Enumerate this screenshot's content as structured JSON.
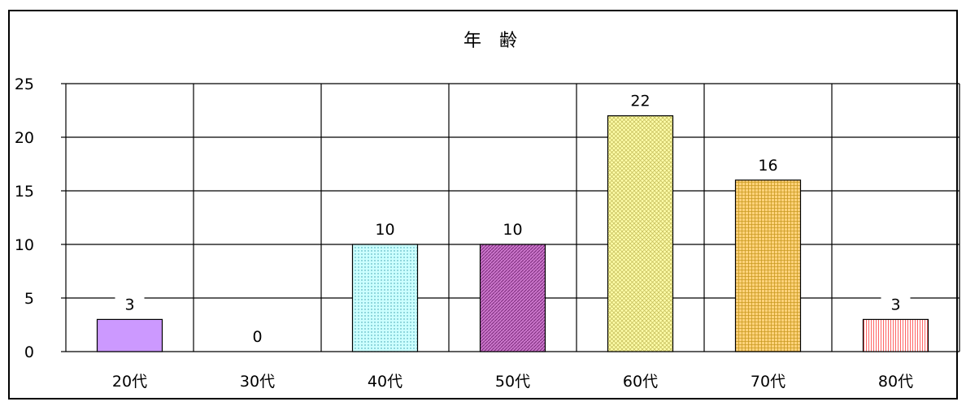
{
  "chart_data": {
    "type": "bar",
    "title": "年　齢",
    "categories": [
      "20代",
      "30代",
      "40代",
      "50代",
      "60代",
      "70代",
      "80代"
    ],
    "values": [
      3,
      0,
      10,
      10,
      22,
      16,
      3
    ],
    "ylim": [
      0,
      25
    ],
    "yticks": [
      0,
      5,
      10,
      15,
      20,
      25
    ],
    "grid": true,
    "legend": "none",
    "colors": [
      "#cc99ff",
      "#ffffff",
      "#ccffff",
      "#cc66cc",
      "#ffff99",
      "#ffcc66",
      "#ff9999"
    ]
  }
}
